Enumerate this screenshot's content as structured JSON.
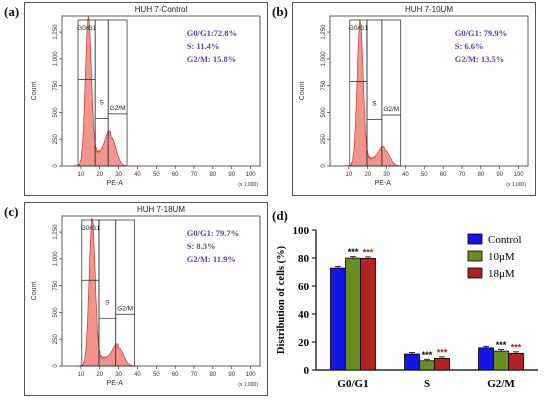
{
  "panels": [
    {
      "label": "(a)",
      "title": "HUH 7-Control",
      "stats": [
        "G0/G1:72.8%",
        "S: 11.4%",
        "G2/M: 15.8%"
      ],
      "gate_labels": {
        "g0g1": "G0/G1",
        "s": "S",
        "g2m": "G2/M"
      },
      "ylabel": "Count",
      "xlabel": "PE-A",
      "x_scale_note": "(x 1,000)",
      "y_ticks": [
        "0",
        "250",
        "500",
        "750",
        "1,000",
        "1,250"
      ],
      "x_ticks": [
        "10",
        "20",
        "30",
        "40",
        "50",
        "60",
        "70",
        "80",
        "90",
        "100"
      ],
      "peak_values": {
        "g1_x": 14,
        "g1_height": 1390,
        "g2_x": 26,
        "g2_height": 270
      }
    },
    {
      "label": "(b)",
      "title": "HUH 7-10UM",
      "stats": [
        "G0/G1:  79.9%",
        "S: 6.6%",
        "G2/M: 13.5%"
      ],
      "gate_labels": {
        "g0g1": "G0/G1",
        "s": "S",
        "g2m": "G2/M"
      },
      "ylabel": "Count",
      "xlabel": "PE-A",
      "x_scale_note": "(x 1,000)",
      "y_ticks": [
        "0",
        "250",
        "500",
        "750",
        "1,000",
        "1,250"
      ],
      "x_ticks": [
        "10",
        "20",
        "30",
        "40",
        "50",
        "60",
        "70",
        "80",
        "90",
        "100"
      ],
      "peak_values": {
        "g1_x": 16,
        "g1_height": 1360,
        "g2_x": 29,
        "g2_height": 150
      }
    },
    {
      "label": "(c)",
      "title": "HUH 7-18UM",
      "stats": [
        "G0/G1:  79.7%",
        "S: 8.3%",
        "G2/M: 11.9%"
      ],
      "gate_labels": {
        "g0g1": "G0/G1",
        "s": "S",
        "g2m": "G2/M"
      },
      "ylabel": "Count",
      "xlabel": "PE-A",
      "x_scale_note": "(x 1,000)",
      "y_ticks": [
        "0",
        "250",
        "500",
        "750",
        "1,000",
        "1,250"
      ],
      "x_ticks": [
        "10",
        "20",
        "30",
        "40",
        "50",
        "60",
        "70",
        "80",
        "90",
        "100"
      ],
      "peak_values": {
        "g1_x": 16,
        "g1_height": 1380,
        "g2_x": 30,
        "g2_height": 170
      }
    }
  ],
  "bar_panel": {
    "label": "(d)"
  },
  "chart_data": {
    "type": "bar",
    "categories": [
      "G0/G1",
      "S",
      "G2/M"
    ],
    "series": [
      {
        "name": "Control",
        "values": [
          72.8,
          11.4,
          15.8
        ],
        "color": "#1515e6"
      },
      {
        "name": "10μM",
        "values": [
          79.9,
          6.6,
          13.5
        ],
        "color": "#6b8e23"
      },
      {
        "name": "18μM",
        "values": [
          79.7,
          8.3,
          11.9
        ],
        "color": "#b22222"
      }
    ],
    "significance": [
      [
        "",
        "***",
        "***"
      ],
      [
        "",
        "***",
        "***"
      ],
      [
        "",
        "***",
        "***"
      ]
    ],
    "ylabel": "Distribution of cells (%)",
    "xlabel": "",
    "ylim": [
      0,
      100
    ],
    "y_ticks": [
      0,
      20,
      40,
      60,
      80,
      100
    ],
    "legend_position": "top-right"
  }
}
